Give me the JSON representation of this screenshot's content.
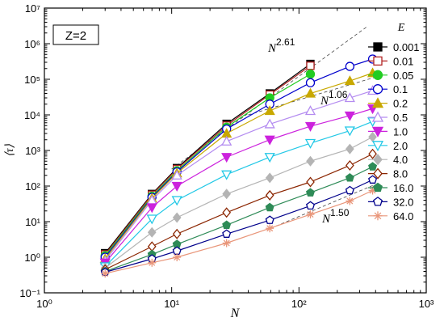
{
  "chart_data": {
    "type": "line",
    "title": "",
    "xlabel": "N",
    "ylabel": "⟨τ⟩",
    "x_scale": "log",
    "y_scale": "log",
    "xlim": [
      1,
      1000
    ],
    "ylim": [
      0.1,
      10000000
    ],
    "grid": false,
    "legend_title": "E",
    "legend_position": "top-right",
    "inset_label": "Z=2",
    "x_ticks": [
      "10⁰",
      "10¹",
      "10²",
      "10³"
    ],
    "y_ticks": [
      "10⁻¹",
      "10⁰",
      "10¹",
      "10²",
      "10³",
      "10⁴",
      "10⁵",
      "10⁶",
      "10⁷"
    ],
    "series": [
      {
        "name": "0.001",
        "color": "#000000",
        "marker": "square",
        "filled": true,
        "x": [
          3,
          7,
          11,
          27,
          59,
          123
        ],
        "y": [
          1.3,
          60,
          320,
          5600,
          40000,
          270000
        ]
      },
      {
        "name": "0.01",
        "color": "#b22222",
        "marker": "square",
        "filled": false,
        "x": [
          3,
          7,
          11,
          27,
          59,
          123
        ],
        "y": [
          1.2,
          57,
          300,
          5000,
          37000,
          240000
        ]
      },
      {
        "name": "0.05",
        "color": "#22cc22",
        "marker": "circle",
        "filled": true,
        "x": [
          3,
          7,
          11,
          27,
          59,
          123
        ],
        "y": [
          1.1,
          52,
          270,
          4500,
          30000,
          140000
        ]
      },
      {
        "name": "0.1",
        "color": "#0000cc",
        "marker": "circle",
        "filled": false,
        "x": [
          3,
          7,
          11,
          27,
          59,
          123,
          251,
          379
        ],
        "y": [
          1.0,
          48,
          250,
          4000,
          20000,
          80000,
          230000,
          370000
        ]
      },
      {
        "name": "0.2",
        "color": "#c8a800",
        "marker": "triangle-up",
        "filled": true,
        "x": [
          3,
          7,
          11,
          27,
          59,
          123,
          251,
          379
        ],
        "y": [
          0.9,
          45,
          230,
          3000,
          13000,
          40000,
          90000,
          150000
        ]
      },
      {
        "name": "0.5",
        "color": "#b48cf0",
        "marker": "triangle-up",
        "filled": false,
        "x": [
          3,
          7,
          11,
          27,
          59,
          123,
          251,
          379
        ],
        "y": [
          0.8,
          40,
          200,
          1800,
          5500,
          13000,
          30000,
          48000
        ]
      },
      {
        "name": "1.0",
        "color": "#cc22dd",
        "marker": "triangle-down",
        "filled": true,
        "x": [
          3,
          7,
          11,
          27,
          59,
          123,
          251,
          379
        ],
        "y": [
          0.7,
          25,
          100,
          650,
          2000,
          4800,
          9500,
          15000
        ]
      },
      {
        "name": "2.0",
        "color": "#22c8e6",
        "marker": "triangle-down",
        "filled": false,
        "x": [
          3,
          7,
          11,
          27,
          59,
          123,
          251,
          379
        ],
        "y": [
          0.55,
          12,
          40,
          210,
          650,
          1600,
          3600,
          6500
        ]
      },
      {
        "name": "4.0",
        "color": "#b4b4b4",
        "marker": "diamond",
        "filled": true,
        "x": [
          3,
          7,
          11,
          27,
          59,
          123,
          251,
          379
        ],
        "y": [
          0.5,
          5,
          13,
          60,
          170,
          500,
          1100,
          2400
        ]
      },
      {
        "name": "8.0",
        "color": "#8b2500",
        "marker": "diamond",
        "filled": false,
        "x": [
          3,
          7,
          11,
          27,
          59,
          123,
          251,
          379
        ],
        "y": [
          0.45,
          2,
          4.5,
          18,
          55,
          130,
          380,
          800
        ]
      },
      {
        "name": "16.0",
        "color": "#2e8b57",
        "marker": "pentagon",
        "filled": true,
        "x": [
          3,
          7,
          11,
          27,
          59,
          123,
          251,
          379
        ],
        "y": [
          0.4,
          1.2,
          2.3,
          8,
          25,
          65,
          170,
          350
        ]
      },
      {
        "name": "32.0",
        "color": "#00008b",
        "marker": "pentagon",
        "filled": false,
        "x": [
          3,
          7,
          11,
          27,
          59,
          123,
          251,
          379
        ],
        "y": [
          0.38,
          0.9,
          1.5,
          4.5,
          11,
          28,
          75,
          150
        ]
      },
      {
        "name": "64.0",
        "color": "#e9967a",
        "marker": "asterisk",
        "filled": false,
        "x": [
          3,
          7,
          11,
          27,
          59,
          123,
          251,
          379
        ],
        "y": [
          0.35,
          0.7,
          1.0,
          2.5,
          6.5,
          16,
          38,
          75
        ]
      }
    ],
    "guide_lines": [
      {
        "label_base": "N",
        "label_exp": "2.61",
        "slope": 2.61,
        "x": [
          10,
          350
        ],
        "y": [
          300,
          3170000
        ]
      },
      {
        "label_base": "N",
        "label_exp": "1.06",
        "slope": 1.06,
        "x": [
          40,
          400
        ],
        "y": [
          10000,
          115000
        ]
      },
      {
        "label_base": "N",
        "label_exp": "1.50",
        "slope": 1.5,
        "x": [
          60,
          400
        ],
        "y": [
          6.5,
          112
        ]
      }
    ]
  }
}
